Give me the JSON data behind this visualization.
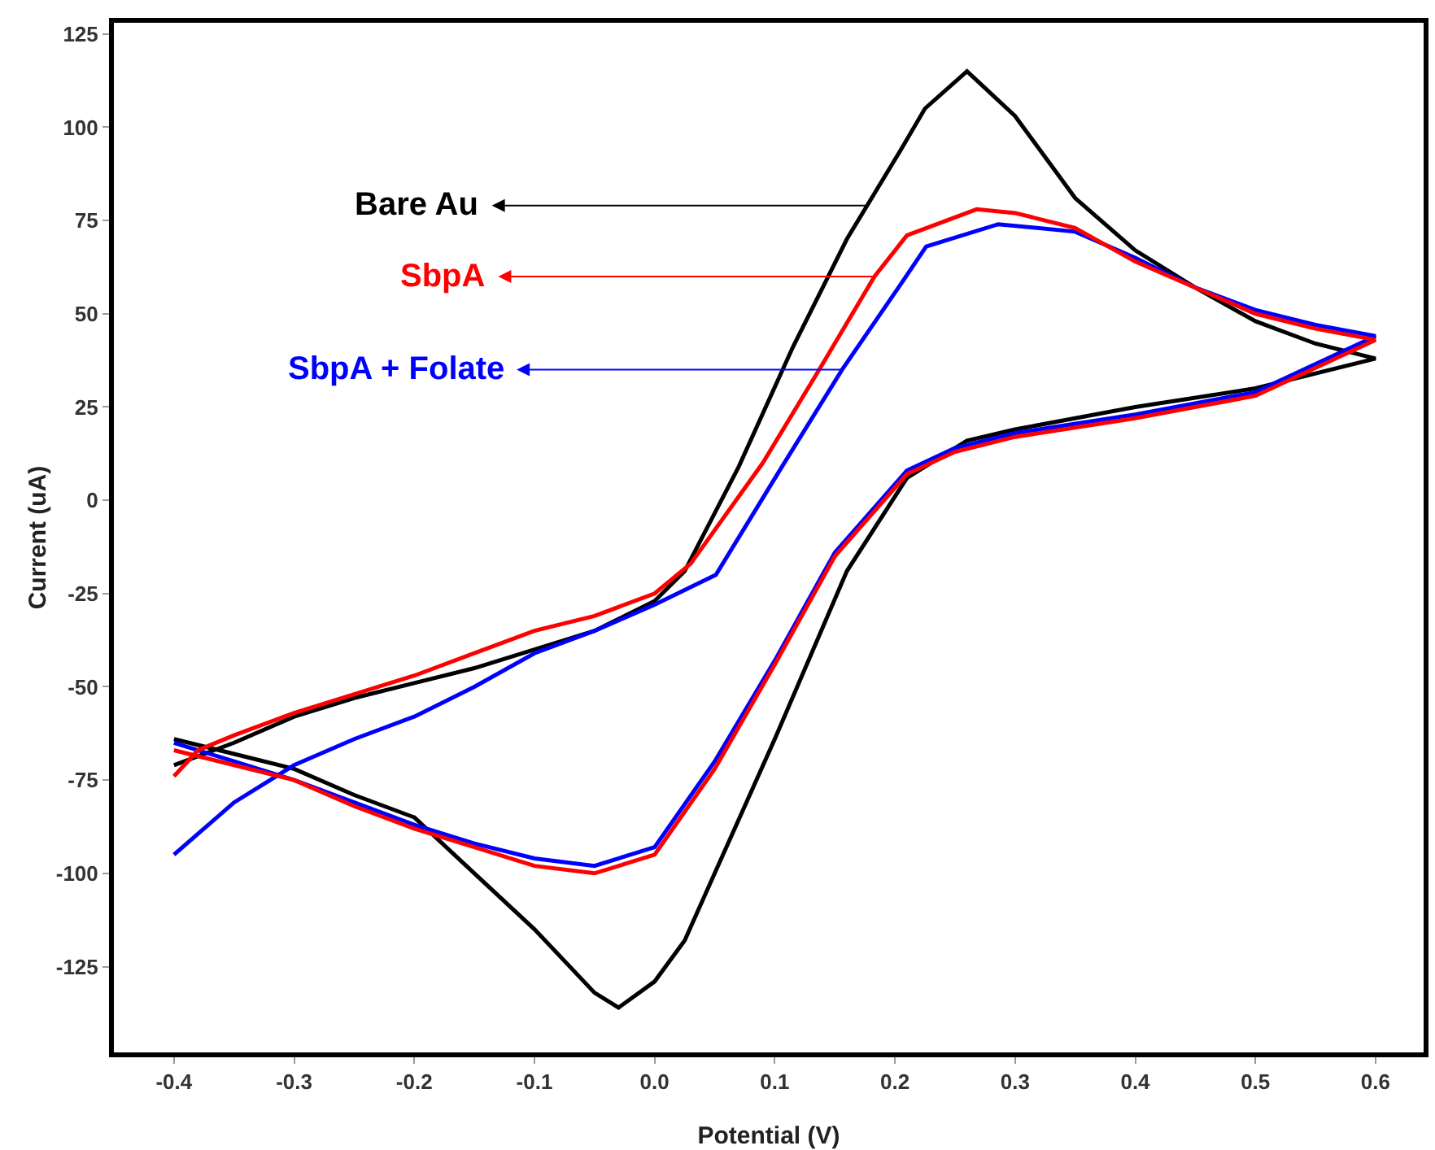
{
  "chart_data": {
    "type": "line",
    "xlabel": "Potential (V)",
    "ylabel": "Current (uA)",
    "xlim": [
      -0.45,
      0.64
    ],
    "xticks": [
      {
        "value": -0.4,
        "label": "-0.4"
      },
      {
        "value": -0.3,
        "label": "-0.3"
      },
      {
        "value": -0.2,
        "label": "-0.2"
      },
      {
        "value": -0.1,
        "label": "-0.1"
      },
      {
        "value": 0,
        "label": "0.0"
      },
      0.1,
      0.2,
      0.3,
      0.4,
      0.5,
      0.6
    ],
    "ylim": [
      -148,
      128
    ],
    "yticks": [
      -125,
      -100,
      -75,
      -50,
      -25,
      0,
      25,
      50,
      75,
      100,
      125
    ],
    "grid": false,
    "marker": "none",
    "line_style": "solid",
    "series": [
      {
        "color": "#000000",
        "x": [
          -0.4,
          -0.35,
          -0.3,
          -0.25,
          -0.2,
          -0.15,
          -0.1,
          -0.05,
          0,
          0.025,
          0.07,
          0.115,
          0.16,
          0.205,
          0.225,
          0.26,
          0.3,
          0.35,
          0.4,
          0.45,
          0.5,
          0.55,
          0.6,
          0.5,
          0.4,
          0.3,
          0.26,
          0.21,
          0.16,
          0.1,
          0.05,
          0.025,
          0,
          -0.03,
          -0.05,
          -0.1,
          -0.15,
          -0.2,
          -0.25,
          -0.3,
          -0.35,
          -0.4
        ],
        "values": [
          -71,
          -65,
          -58,
          -53,
          -49,
          -45,
          -40,
          -35,
          -27,
          -19,
          9,
          41,
          70,
          94,
          105,
          115,
          103,
          81,
          67,
          57,
          48,
          42,
          38,
          30,
          25,
          19,
          16,
          6,
          -19,
          -64,
          -100,
          -118,
          -129,
          -136,
          -132,
          -115,
          -100,
          -85,
          -79,
          -72,
          -68,
          -64
        ]
      },
      {
        "color": "#0000ff",
        "x": [
          -0.4,
          -0.35,
          -0.3,
          -0.25,
          -0.2,
          -0.15,
          -0.1,
          -0.05,
          0,
          0.051,
          0.106,
          0.156,
          0.205,
          0.226,
          0.286,
          0.35,
          0.4,
          0.45,
          0.5,
          0.55,
          0.6,
          0.5,
          0.4,
          0.3,
          0.25,
          0.21,
          0.15,
          0.1,
          0.05,
          0,
          -0.05,
          -0.1,
          -0.15,
          -0.2,
          -0.25,
          -0.3,
          -0.35,
          -0.4
        ],
        "values": [
          -95,
          -81,
          -71,
          -64,
          -58,
          -50,
          -41,
          -35,
          -28,
          -20,
          9,
          35,
          58,
          68,
          74,
          72,
          65,
          57,
          51,
          47,
          44,
          29,
          23,
          18,
          14,
          8,
          -14,
          -43,
          -70,
          -93,
          -98,
          -96,
          -92,
          -87,
          -81,
          -75,
          -70,
          -65
        ]
      },
      {
        "color": "#ff0000",
        "x": [
          -0.4,
          -0.38,
          -0.35,
          -0.3,
          -0.25,
          -0.2,
          -0.15,
          -0.1,
          -0.05,
          0,
          0.03,
          0.09,
          0.137,
          0.183,
          0.21,
          0.268,
          0.3,
          0.35,
          0.4,
          0.45,
          0.5,
          0.55,
          0.6,
          0.5,
          0.4,
          0.3,
          0.25,
          0.21,
          0.15,
          0.1,
          0.05,
          0,
          -0.05,
          -0.1,
          -0.15,
          -0.2,
          -0.25,
          -0.3,
          -0.35,
          -0.4
        ],
        "values": [
          -74,
          -67,
          -63,
          -57,
          -52,
          -47,
          -41,
          -35,
          -31,
          -25,
          -17,
          10,
          35,
          60,
          71,
          78,
          77,
          73,
          64,
          57,
          50,
          46,
          43,
          28,
          22,
          17,
          13,
          7,
          -15,
          -44,
          -72,
          -95,
          -100,
          -98,
          -93,
          -88,
          -82,
          -75,
          -71,
          -67
        ]
      }
    ],
    "annotations": [
      {
        "text": "Bare Au",
        "x": 0.176,
        "y": 79
      },
      {
        "text": "SbpA + Folate",
        "x": 0.156,
        "y": 35
      },
      {
        "text": "SbpA",
        "x": 0.184,
        "y": 60
      }
    ]
  }
}
